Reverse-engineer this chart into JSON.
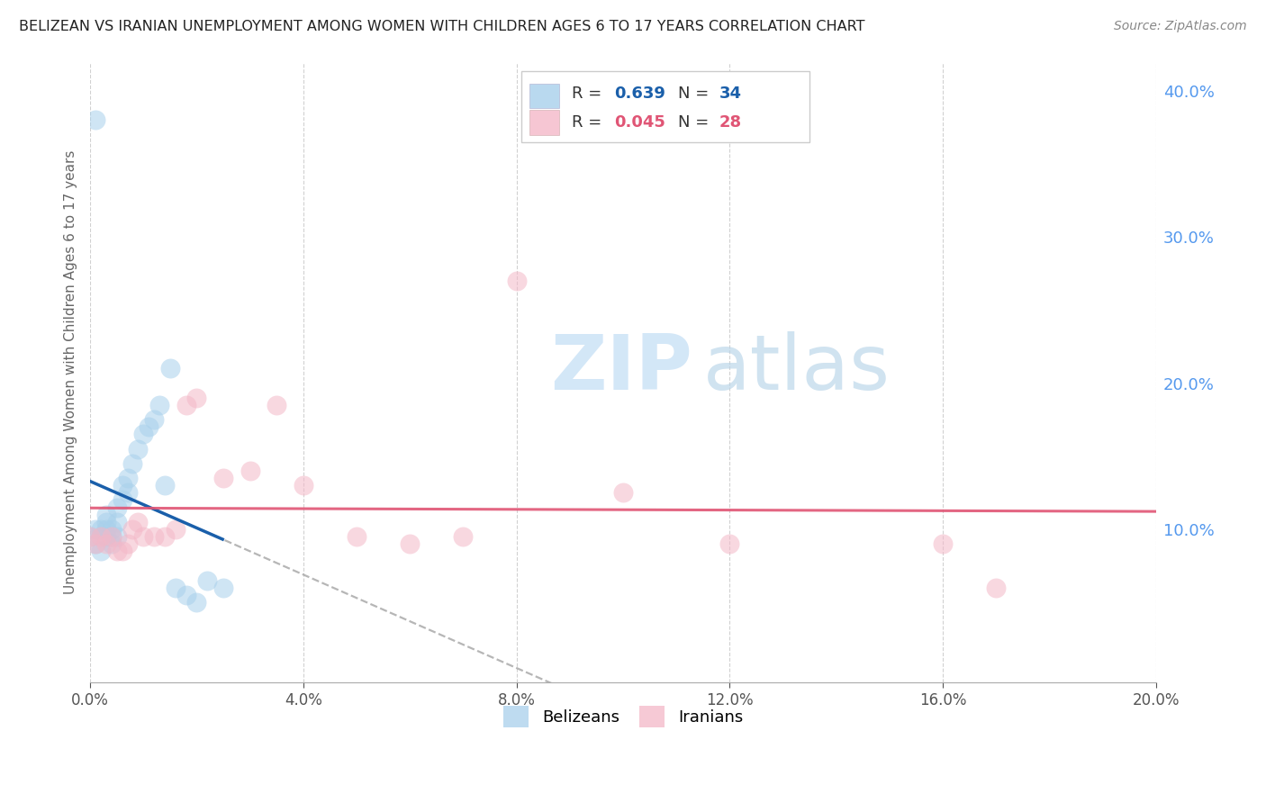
{
  "title": "BELIZEAN VS IRANIAN UNEMPLOYMENT AMONG WOMEN WITH CHILDREN AGES 6 TO 17 YEARS CORRELATION CHART",
  "source": "Source: ZipAtlas.com",
  "ylabel": "Unemployment Among Women with Children Ages 6 to 17 years",
  "xlim": [
    0.0,
    0.2
  ],
  "ylim": [
    -0.005,
    0.42
  ],
  "xticks": [
    0.0,
    0.04,
    0.08,
    0.12,
    0.16,
    0.2
  ],
  "yticks_right": [
    0.1,
    0.2,
    0.3,
    0.4
  ],
  "belizean_x": [
    0.0,
    0.001,
    0.001,
    0.002,
    0.002,
    0.002,
    0.003,
    0.003,
    0.003,
    0.003,
    0.004,
    0.004,
    0.004,
    0.005,
    0.005,
    0.005,
    0.006,
    0.006,
    0.007,
    0.007,
    0.008,
    0.009,
    0.01,
    0.011,
    0.012,
    0.013,
    0.014,
    0.015,
    0.016,
    0.018,
    0.02,
    0.022,
    0.025,
    0.001
  ],
  "belizean_y": [
    0.095,
    0.09,
    0.1,
    0.095,
    0.085,
    0.1,
    0.095,
    0.1,
    0.105,
    0.11,
    0.09,
    0.095,
    0.1,
    0.095,
    0.105,
    0.115,
    0.12,
    0.13,
    0.125,
    0.135,
    0.145,
    0.155,
    0.165,
    0.17,
    0.175,
    0.185,
    0.13,
    0.21,
    0.06,
    0.055,
    0.05,
    0.065,
    0.06,
    0.38
  ],
  "iranian_x": [
    0.0,
    0.001,
    0.002,
    0.003,
    0.004,
    0.005,
    0.006,
    0.007,
    0.008,
    0.009,
    0.01,
    0.012,
    0.014,
    0.016,
    0.018,
    0.02,
    0.025,
    0.03,
    0.035,
    0.04,
    0.05,
    0.06,
    0.07,
    0.08,
    0.1,
    0.12,
    0.16,
    0.17
  ],
  "iranian_y": [
    0.095,
    0.09,
    0.095,
    0.09,
    0.095,
    0.085,
    0.085,
    0.09,
    0.1,
    0.105,
    0.095,
    0.095,
    0.095,
    0.1,
    0.185,
    0.19,
    0.135,
    0.14,
    0.185,
    0.13,
    0.095,
    0.09,
    0.095,
    0.27,
    0.125,
    0.09,
    0.09,
    0.06
  ],
  "belizean_color": "#a8d0eb",
  "iranian_color": "#f4b8c8",
  "belizean_line_color": "#1a5faa",
  "iranian_line_color": "#e05575",
  "belizean_R": "0.639",
  "belizean_N": "34",
  "iranian_R": "0.045",
  "iranian_N": "28",
  "watermark_zip": "ZIP",
  "watermark_atlas": "atlas",
  "bg_color": "#ffffff",
  "grid_color": "#cccccc",
  "right_tick_color": "#5599ee",
  "title_fontsize": 11.5,
  "source_fontsize": 10,
  "axis_label_fontsize": 11,
  "tick_fontsize": 12,
  "legend_fontsize": 13
}
